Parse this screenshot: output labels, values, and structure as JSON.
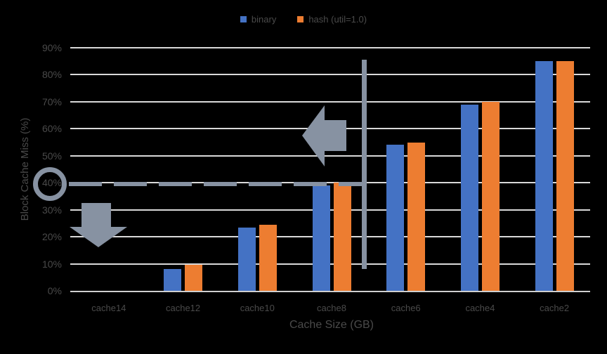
{
  "colors": {
    "background": "#000000",
    "gridline": "#d9d9d9",
    "axis_line": "#cfcfcf",
    "text": "#4a4a4a",
    "annotation": "#8792a2",
    "series_binary": "#4472C4",
    "series_hash": "#ED7D31"
  },
  "chart_data": {
    "type": "bar",
    "title": "",
    "categories": [
      "cache14",
      "cache12",
      "cache10",
      "cache8",
      "cache6",
      "cache4",
      "cache2"
    ],
    "series": [
      {
        "name": "binary",
        "color": "#4472C4",
        "values": [
          0,
          8,
          23.5,
          39,
          54,
          69,
          85
        ]
      },
      {
        "name": "hash (util=1.0)",
        "color": "#ED7D31",
        "values": [
          0,
          9.5,
          24.5,
          40,
          55,
          70,
          85
        ]
      }
    ],
    "xlabel": "Cache Size (GB)",
    "ylabel": "Block Cache Miss (%)",
    "ylim": [
      0,
      90
    ],
    "ytick_step": 10,
    "yticks": [
      "0%",
      "10%",
      "20%",
      "30%",
      "40%",
      "50%",
      "60%",
      "70%",
      "80%",
      "90%"
    ],
    "grid": true,
    "legend_position": "top-center",
    "annotations": [
      {
        "type": "circle-highlight",
        "target": "y-tick-40%",
        "color": "#8792a2"
      },
      {
        "type": "dashed-threshold-line",
        "value_pct": 40,
        "color": "#8792a2"
      },
      {
        "type": "arrow-left",
        "near_value_pct": 57,
        "color": "#8792a2"
      },
      {
        "type": "arrow-down",
        "near_value_pct": 28,
        "color": "#8792a2"
      },
      {
        "type": "vertical-divider-line",
        "between": [
          "cache8",
          "cache6"
        ],
        "color": "#8792a2"
      }
    ]
  }
}
